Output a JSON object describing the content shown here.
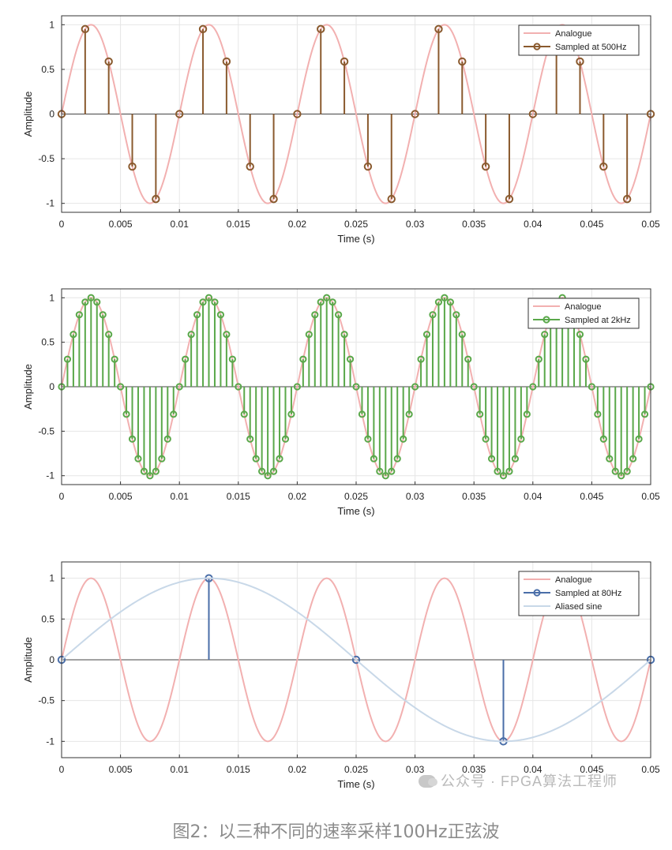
{
  "chart_data": [
    {
      "type": "line",
      "xlabel": "Time (s)",
      "ylabel": "Amplitude",
      "xlim": [
        0,
        0.05
      ],
      "ylim": [
        -1.1,
        1.1
      ],
      "xticks": [
        "0",
        "0.005",
        "0.01",
        "0.015",
        "0.02",
        "0.025",
        "0.03",
        "0.035",
        "0.04",
        "0.045",
        "0.05"
      ],
      "yticks": [
        "-1",
        "-0.5",
        "0",
        "0.5",
        "1"
      ],
      "grid": true,
      "legend_position": "top-right",
      "series": [
        {
          "name": "Analogue",
          "kind": "line",
          "color": "#f2b0b0",
          "function": "sin(2*pi*100*t)"
        },
        {
          "name": "Sampled at 500Hz",
          "kind": "stem",
          "color": "#8a5a2e",
          "x": [
            0,
            0.002,
            0.004,
            0.006,
            0.008,
            0.01,
            0.012,
            0.014,
            0.016,
            0.018,
            0.02,
            0.022,
            0.024,
            0.026,
            0.028,
            0.03,
            0.032,
            0.034,
            0.036,
            0.038,
            0.04,
            0.042,
            0.044,
            0.046,
            0.048,
            0.05
          ],
          "y": [
            0,
            0.951,
            0.588,
            -0.588,
            -0.951,
            0,
            0.951,
            0.588,
            -0.588,
            -0.951,
            0,
            0.951,
            0.588,
            -0.588,
            -0.951,
            0,
            0.951,
            0.588,
            -0.588,
            -0.951,
            0,
            0.951,
            0.588,
            -0.588,
            -0.951,
            0
          ]
        }
      ]
    },
    {
      "type": "line",
      "xlabel": "Time (s)",
      "ylabel": "Amplitude",
      "xlim": [
        0,
        0.05
      ],
      "ylim": [
        -1.1,
        1.1
      ],
      "xticks": [
        "0",
        "0.005",
        "0.01",
        "0.015",
        "0.02",
        "0.025",
        "0.03",
        "0.035",
        "0.04",
        "0.045",
        "0.05"
      ],
      "yticks": [
        "-1",
        "-0.5",
        "0",
        "0.5",
        "1"
      ],
      "grid": true,
      "legend_position": "top-right",
      "series": [
        {
          "name": "Analogue",
          "kind": "line",
          "color": "#f2b0b0",
          "function": "sin(2*pi*100*t)"
        },
        {
          "name": "Sampled at 2kHz",
          "kind": "stem",
          "color": "#5aa84a",
          "x": [
            0,
            0.0005,
            0.001,
            0.0015,
            0.002,
            0.0025,
            0.003,
            0.0035,
            0.004,
            0.0045,
            0.005,
            0.0055,
            0.006,
            0.0065,
            0.007,
            0.0075,
            0.008,
            0.0085,
            0.009,
            0.0095,
            0.01,
            0.0105,
            0.011,
            0.0115,
            0.012,
            0.0125,
            0.013,
            0.0135,
            0.014,
            0.0145,
            0.015,
            0.0155,
            0.016,
            0.0165,
            0.017,
            0.0175,
            0.018,
            0.0185,
            0.019,
            0.0195,
            0.02,
            0.0205,
            0.021,
            0.0215,
            0.022,
            0.0225,
            0.023,
            0.0235,
            0.024,
            0.0245,
            0.025,
            0.0255,
            0.026,
            0.0265,
            0.027,
            0.0275,
            0.028,
            0.0285,
            0.029,
            0.0295,
            0.03,
            0.0305,
            0.031,
            0.0315,
            0.032,
            0.0325,
            0.033,
            0.0335,
            0.034,
            0.0345,
            0.035,
            0.0355,
            0.036,
            0.0365,
            0.037,
            0.0375,
            0.038,
            0.0385,
            0.039,
            0.0395,
            0.04,
            0.0405,
            0.041,
            0.0415,
            0.042,
            0.0425,
            0.043,
            0.0435,
            0.044,
            0.0445,
            0.045,
            0.0455,
            0.046,
            0.0465,
            0.047,
            0.0475,
            0.048,
            0.0485,
            0.049,
            0.0495,
            0.05
          ],
          "y": [
            0,
            0.309,
            0.588,
            0.809,
            0.951,
            1,
            0.951,
            0.809,
            0.588,
            0.309,
            0,
            -0.309,
            -0.588,
            -0.809,
            -0.951,
            -1,
            -0.951,
            -0.809,
            -0.588,
            -0.309,
            0,
            0.309,
            0.588,
            0.809,
            0.951,
            1,
            0.951,
            0.809,
            0.588,
            0.309,
            0,
            -0.309,
            -0.588,
            -0.809,
            -0.951,
            -1,
            -0.951,
            -0.809,
            -0.588,
            -0.309,
            0,
            0.309,
            0.588,
            0.809,
            0.951,
            1,
            0.951,
            0.809,
            0.588,
            0.309,
            0,
            -0.309,
            -0.588,
            -0.809,
            -0.951,
            -1,
            -0.951,
            -0.809,
            -0.588,
            -0.309,
            0,
            0.309,
            0.588,
            0.809,
            0.951,
            1,
            0.951,
            0.809,
            0.588,
            0.309,
            0,
            -0.309,
            -0.588,
            -0.809,
            -0.951,
            -1,
            -0.951,
            -0.809,
            -0.588,
            -0.309,
            0,
            0.309,
            0.588,
            0.809,
            0.951,
            1,
            0.951,
            0.809,
            0.588,
            0.309,
            0,
            -0.309,
            -0.588,
            -0.809,
            -0.951,
            -1,
            -0.951,
            -0.809,
            -0.588,
            -0.309,
            0
          ]
        }
      ]
    },
    {
      "type": "line",
      "xlabel": "Time (s)",
      "ylabel": "Amplitude",
      "xlim": [
        0,
        0.05
      ],
      "ylim": [
        -1.2,
        1.2
      ],
      "xticks": [
        "0",
        "0.005",
        "0.01",
        "0.015",
        "0.02",
        "0.025",
        "0.03",
        "0.035",
        "0.04",
        "0.045",
        "0.05"
      ],
      "yticks": [
        "-1",
        "-0.5",
        "0",
        "0.5",
        "1"
      ],
      "grid": true,
      "legend_position": "top-right",
      "series": [
        {
          "name": "Analogue",
          "kind": "line",
          "color": "#f2b0b0",
          "function": "sin(2*pi*100*t)"
        },
        {
          "name": "Sampled at 80Hz",
          "kind": "stem",
          "color": "#4a6ea8",
          "x": [
            0,
            0.0125,
            0.025,
            0.0375,
            0.05
          ],
          "y": [
            0,
            1,
            0,
            -1,
            0
          ]
        },
        {
          "name": "Aliased sine",
          "kind": "line",
          "color": "#c8d8e8",
          "function": "sin(2*pi*20*t)"
        }
      ]
    }
  ],
  "watermark": "公众号 · FPGA算法工程师",
  "caption": "图2：以三种不同的速率采样100Hz正弦波"
}
